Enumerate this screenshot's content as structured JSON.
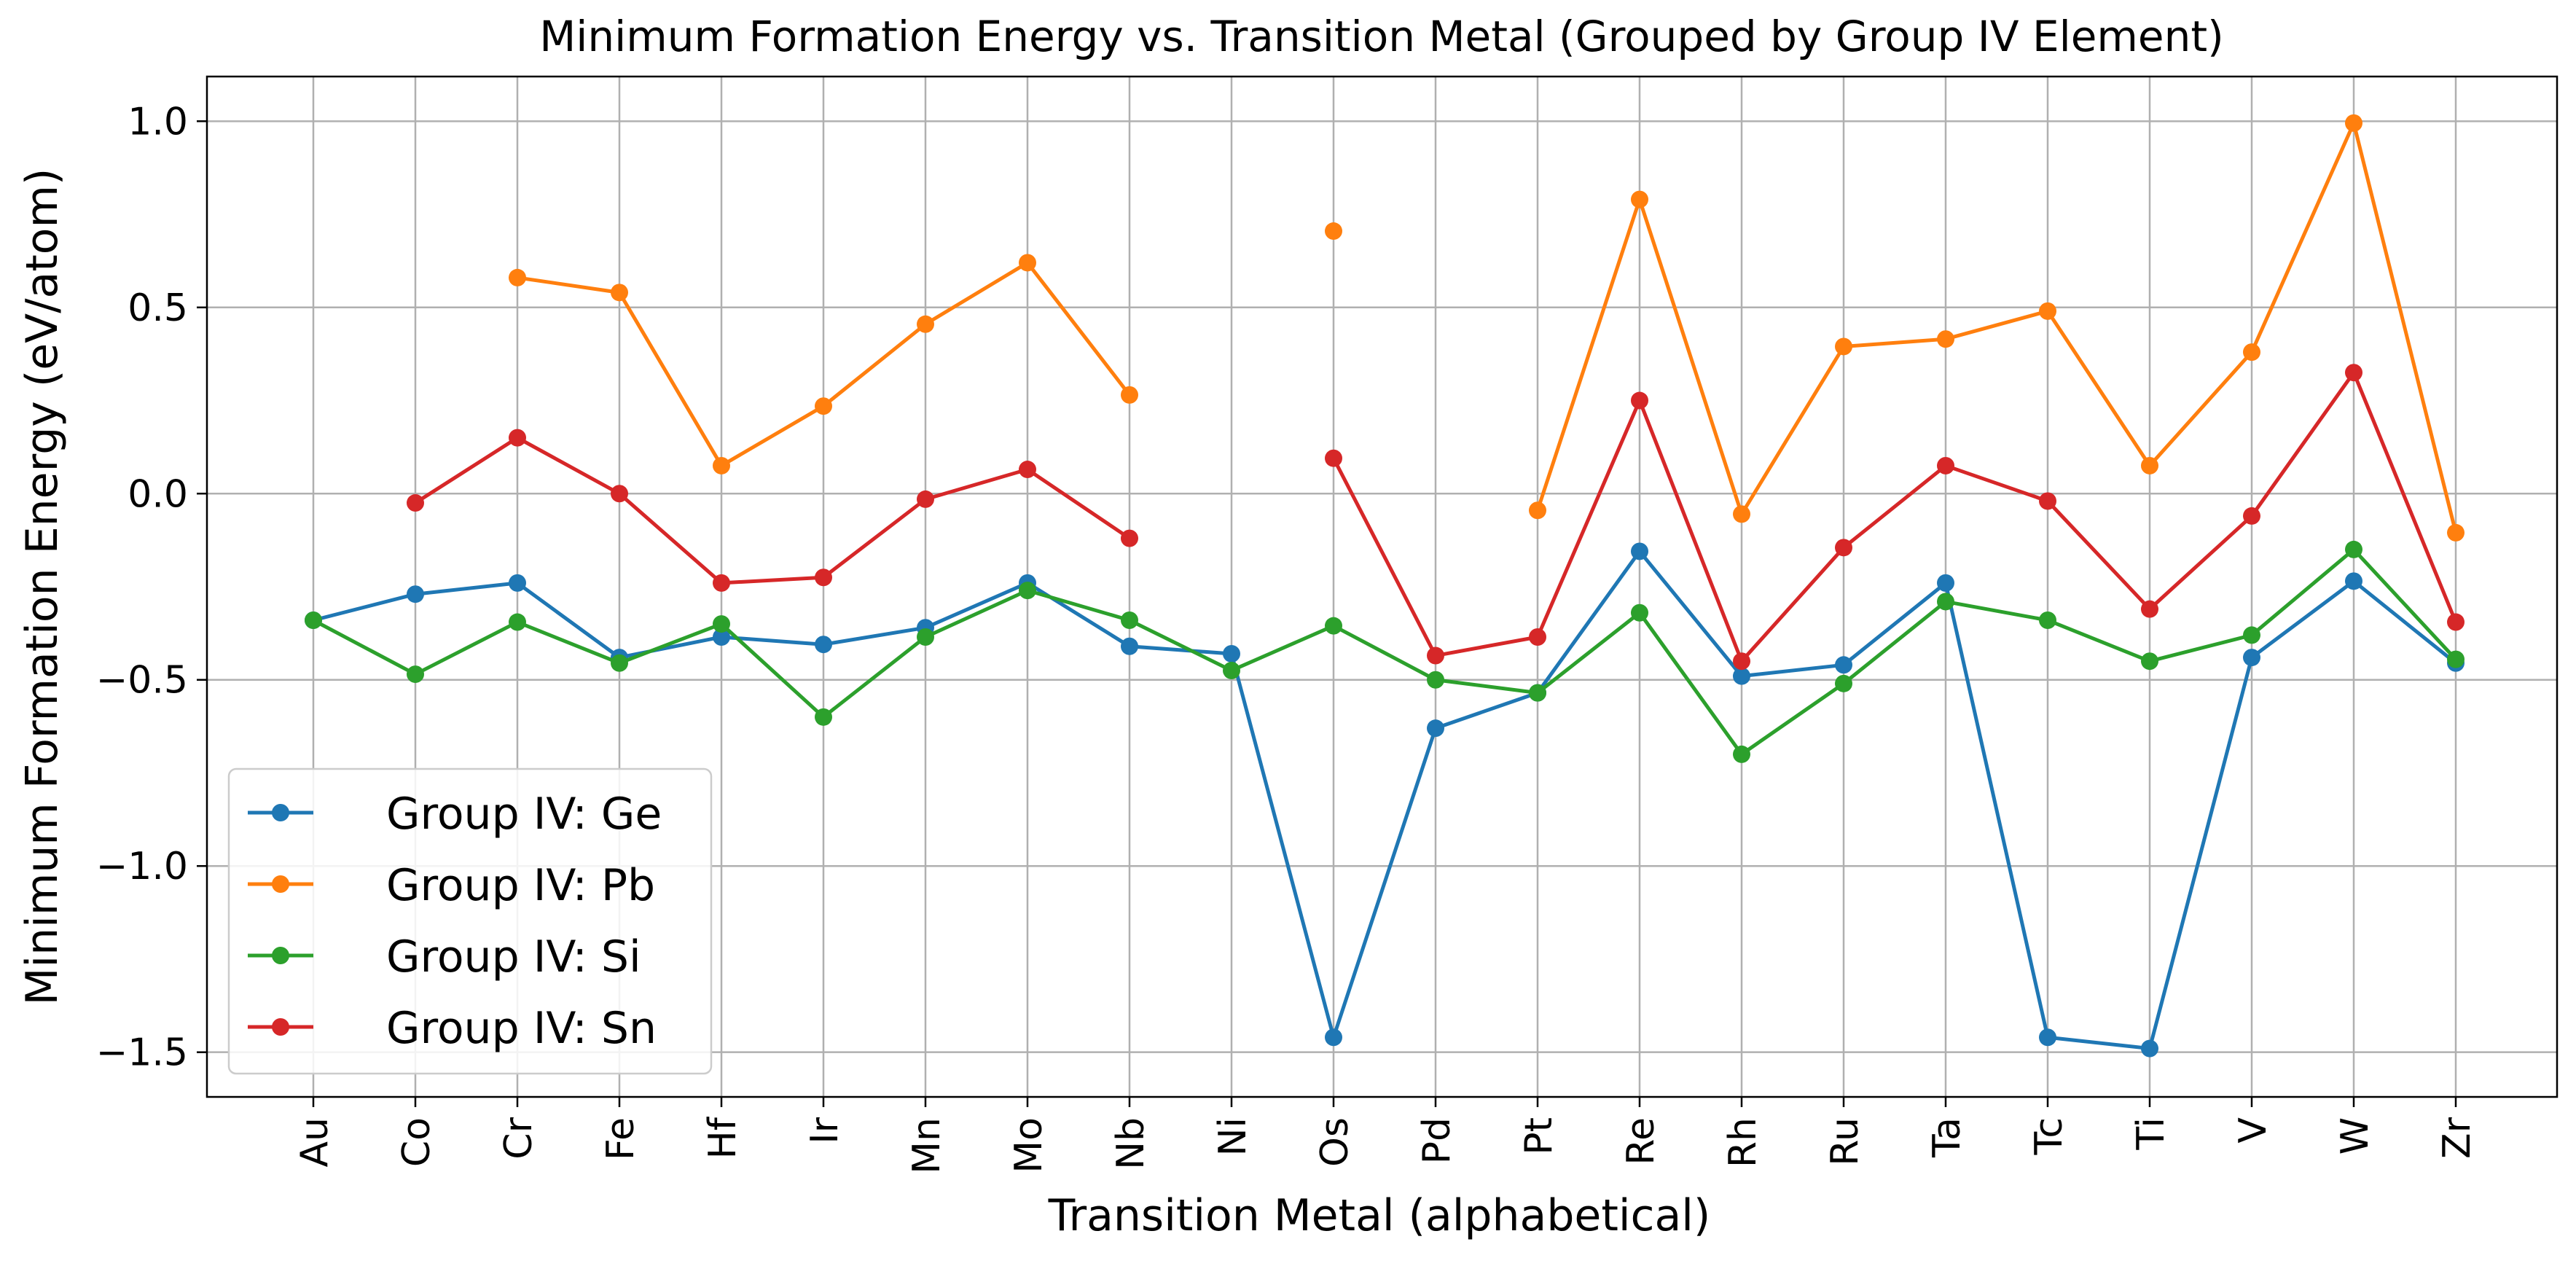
{
  "chart_data": {
    "type": "line",
    "title": "Minimum Formation Energy vs. Transition Metal (Grouped by Group IV Element)",
    "xlabel": "Transition Metal (alphabetical)",
    "ylabel": "Minimum Formation Energy (eV/atom)",
    "categories": [
      "Au",
      "Co",
      "Cr",
      "Fe",
      "Hf",
      "Ir",
      "Mn",
      "Mo",
      "Nb",
      "Ni",
      "Os",
      "Pd",
      "Pt",
      "Re",
      "Rh",
      "Ru",
      "Ta",
      "Tc",
      "Ti",
      "V",
      "W",
      "Zr"
    ],
    "ylim": [
      -1.62,
      1.12
    ],
    "yticks": [
      -1.5,
      -1.0,
      -0.5,
      0.0,
      0.5,
      1.0
    ],
    "ytick_labels": [
      "−1.5",
      "−1.0",
      "−0.5",
      "0.0",
      "0.5",
      "1.0"
    ],
    "grid": true,
    "legend_position": "lower-left",
    "series": [
      {
        "name": "Group IV: Ge",
        "color": "#1f77b4",
        "values": [
          -0.34,
          -0.27,
          -0.24,
          -0.44,
          -0.385,
          -0.405,
          -0.36,
          -0.24,
          -0.41,
          -0.43,
          -1.46,
          -0.63,
          -0.535,
          -0.155,
          -0.49,
          -0.46,
          -0.24,
          -1.46,
          -1.49,
          -0.44,
          -0.235,
          -0.455
        ]
      },
      {
        "name": "Group IV: Pb",
        "color": "#ff7f0e",
        "values": [
          null,
          null,
          0.58,
          0.54,
          0.075,
          0.235,
          0.455,
          0.62,
          0.265,
          null,
          0.705,
          null,
          -0.045,
          0.79,
          -0.055,
          0.395,
          0.415,
          0.49,
          0.075,
          0.38,
          0.995,
          -0.105
        ]
      },
      {
        "name": "Group IV: Si",
        "color": "#2ca02c",
        "values": [
          -0.34,
          -0.485,
          -0.345,
          -0.455,
          -0.35,
          -0.6,
          -0.385,
          -0.26,
          -0.34,
          -0.475,
          -0.355,
          -0.5,
          -0.535,
          -0.32,
          -0.7,
          -0.51,
          -0.29,
          -0.34,
          -0.45,
          -0.38,
          -0.15,
          -0.445
        ]
      },
      {
        "name": "Group IV: Sn",
        "color": "#d62728",
        "values": [
          null,
          -0.025,
          0.15,
          0.0,
          -0.24,
          -0.225,
          -0.015,
          0.065,
          -0.12,
          null,
          0.095,
          -0.435,
          -0.385,
          0.25,
          -0.45,
          -0.145,
          0.075,
          -0.02,
          -0.31,
          -0.06,
          0.325,
          -0.345
        ]
      }
    ]
  }
}
